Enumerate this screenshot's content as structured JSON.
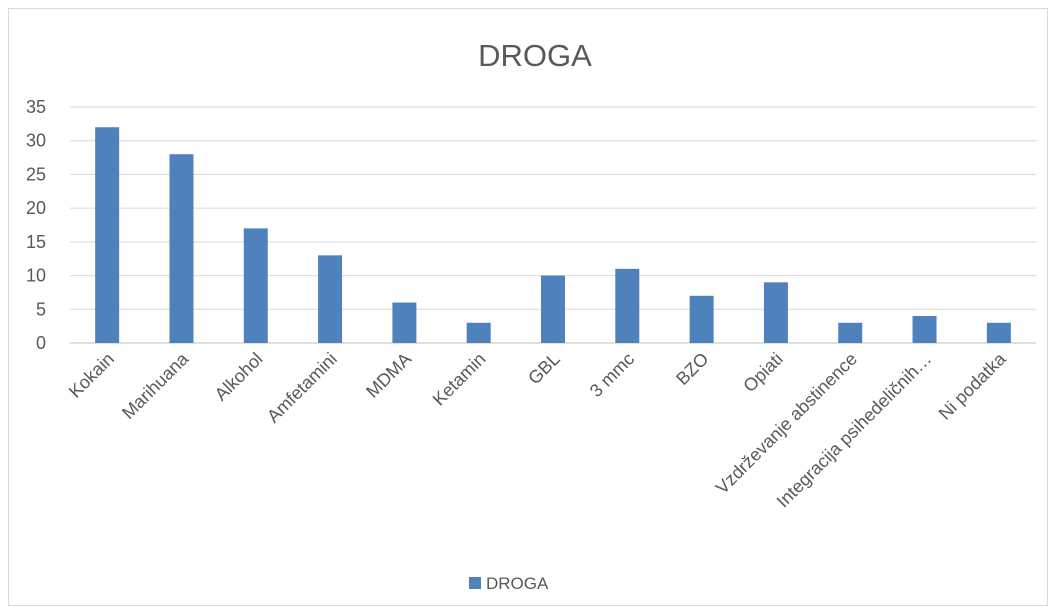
{
  "chart_data": {
    "type": "bar",
    "title": "DROGA",
    "categories": [
      "Kokain",
      "Marihuana",
      "Alkohol",
      "Amfetamini",
      "MDMA",
      "Ketamin",
      "GBL",
      "3 mmc",
      "BZO",
      "Opiati",
      "Vzdrževanje abstinence",
      "Integracija psihedeličnih…",
      "Ni podatka"
    ],
    "series": [
      {
        "name": "DROGA",
        "values": [
          32,
          28,
          17,
          13,
          6,
          3,
          10,
          11,
          7,
          9,
          3,
          4,
          3
        ],
        "color": "#4f81bd"
      }
    ],
    "ylim": [
      0,
      35
    ],
    "yticks": [
      0,
      5,
      10,
      15,
      20,
      25,
      30,
      35
    ],
    "grid": true,
    "legend_position": "bottom"
  }
}
